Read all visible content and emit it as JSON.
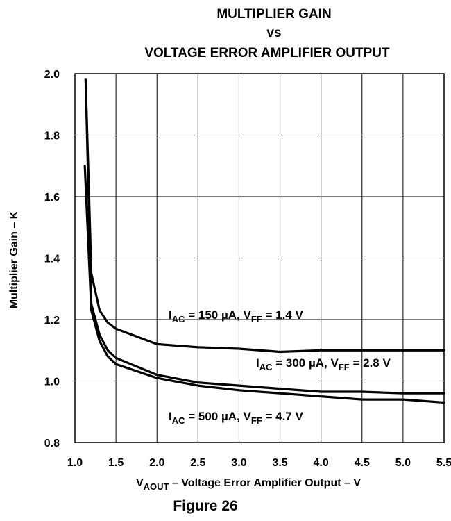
{
  "figure_caption": "Figure 26",
  "chart_data": {
    "type": "line",
    "title": [
      "MULTIPLIER GAIN",
      "vs",
      "VOLTAGE ERROR AMPLIFIER OUTPUT"
    ],
    "xlabel": {
      "main": "V",
      "sub": "AOUT",
      "rest": " – Voltage Error Amplifier Output – V"
    },
    "ylabel": "Multiplier Gain – K",
    "xlim": [
      1.0,
      5.5
    ],
    "ylim": [
      0.8,
      2.0
    ],
    "x_ticks": [
      {
        "v": 1.0,
        "label": "1.0"
      },
      {
        "v": 1.5,
        "label": "1.5"
      },
      {
        "v": 2.0,
        "label": "2.0"
      },
      {
        "v": 2.5,
        "label": "2.5"
      },
      {
        "v": 3.0,
        "label": "3.0"
      },
      {
        "v": 3.5,
        "label": "3.5"
      },
      {
        "v": 4.0,
        "label": "4.0"
      },
      {
        "v": 4.5,
        "label": "4.5"
      },
      {
        "v": 5.0,
        "label": "5.0"
      },
      {
        "v": 5.5,
        "label": "5.5"
      }
    ],
    "y_ticks": [
      {
        "v": 0.8,
        "label": "0.8"
      },
      {
        "v": 1.0,
        "label": "1.0"
      },
      {
        "v": 1.2,
        "label": "1.2"
      },
      {
        "v": 1.4,
        "label": "1.4"
      },
      {
        "v": 1.6,
        "label": "1.6"
      },
      {
        "v": 1.8,
        "label": "1.8"
      },
      {
        "v": 2.0,
        "label": "2.0"
      }
    ],
    "grid": true,
    "series": [
      {
        "name": {
          "i": "I",
          "isub": "AC",
          "mid": " = 150 µA, V",
          "vsub": "FF",
          "end": " = 1.4 V"
        },
        "x": [
          1.13,
          1.2,
          1.3,
          1.4,
          1.5,
          2.0,
          2.5,
          3.0,
          3.5,
          4.0,
          4.5,
          5.0,
          5.5
        ],
        "y": [
          1.98,
          1.35,
          1.23,
          1.19,
          1.17,
          1.12,
          1.11,
          1.105,
          1.095,
          1.1,
          1.1,
          1.1,
          1.1
        ]
      },
      {
        "name": {
          "i": "I",
          "isub": "AC",
          "mid": " = 300 µA, V",
          "vsub": "FF",
          "end": " = 2.8 V"
        },
        "x": [
          1.13,
          1.2,
          1.3,
          1.4,
          1.5,
          2.0,
          2.5,
          3.0,
          3.5,
          4.0,
          4.5,
          5.0,
          5.5
        ],
        "y": [
          1.98,
          1.25,
          1.15,
          1.1,
          1.075,
          1.02,
          0.995,
          0.985,
          0.975,
          0.965,
          0.965,
          0.96,
          0.96
        ]
      },
      {
        "name": {
          "i": "I",
          "isub": "AC",
          "mid": " = 500 µA, V",
          "vsub": "FF",
          "end": " = 4.7 V"
        },
        "x": [
          1.12,
          1.2,
          1.3,
          1.4,
          1.5,
          2.0,
          2.5,
          3.0,
          3.5,
          4.0,
          4.5,
          5.0,
          5.5
        ],
        "y": [
          1.7,
          1.23,
          1.13,
          1.08,
          1.055,
          1.01,
          0.985,
          0.97,
          0.96,
          0.95,
          0.94,
          0.94,
          0.93
        ]
      }
    ]
  }
}
